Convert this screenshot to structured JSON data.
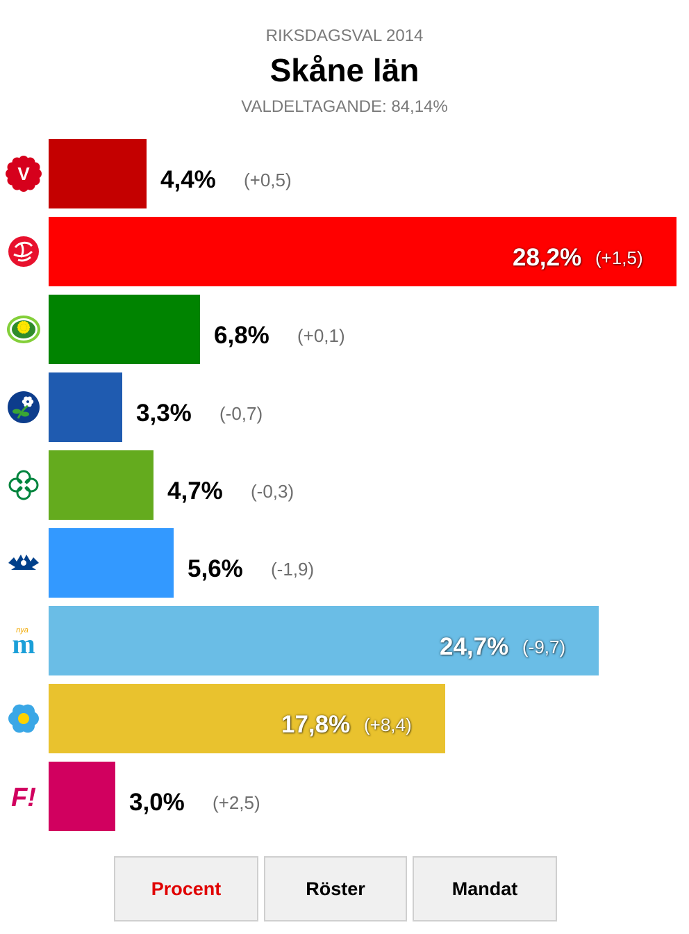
{
  "header": {
    "supertitle": "RIKSDAGSVAL 2014",
    "title": "Skåne län",
    "turnout_label": "VALDELTAGANDE:",
    "turnout_value": "84,14%"
  },
  "chart_data": {
    "type": "bar",
    "orientation": "horizontal",
    "xlim": [
      0,
      28.2
    ],
    "categories": [
      "V",
      "S",
      "MP",
      "KD",
      "C",
      "FP",
      "M",
      "SD",
      "FI"
    ],
    "values": [
      4.4,
      28.2,
      6.8,
      3.3,
      4.7,
      5.6,
      24.7,
      17.8,
      3.0
    ],
    "value_labels": [
      "4,4%",
      "28,2%",
      "6,8%",
      "3,3%",
      "4,7%",
      "5,6%",
      "24,7%",
      "17,8%",
      "3,0%"
    ],
    "change_labels": [
      "(+0,5)",
      "(+1,5)",
      "(+0,1)",
      "(-0,7)",
      "(-0,3)",
      "(-1,9)",
      "(-9,7)",
      "(+8,4)",
      "(+2,5)"
    ],
    "colors": [
      "#c40000",
      "#ff0000",
      "#008300",
      "#1f5bb0",
      "#64ab1e",
      "#3399ff",
      "#6abde6",
      "#e9c22e",
      "#d1005f"
    ],
    "icons": [
      "v-rose-icon",
      "s-rose-icon",
      "mp-dandelion-icon",
      "kd-flower-icon",
      "c-clover-icon",
      "fp-cornflower-icon",
      "m-logo-icon",
      "sd-anemone-icon",
      "fi-logo-icon"
    ],
    "icon_text": {
      "V": "V",
      "M": "m",
      "M_small": "nya",
      "FI": "F!"
    },
    "grid": false,
    "legend": "none"
  },
  "tabs": [
    {
      "label": "Procent",
      "active": true
    },
    {
      "label": "Röster",
      "active": false
    },
    {
      "label": "Mandat",
      "active": false
    }
  ],
  "colors": {
    "active_tab": "#e00000",
    "muted_text": "#7a7a7a"
  }
}
